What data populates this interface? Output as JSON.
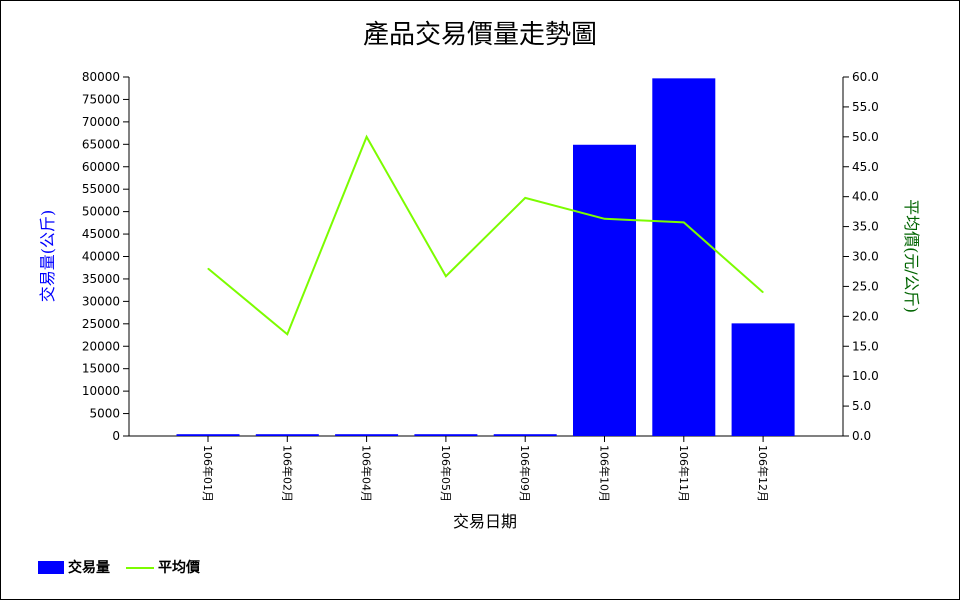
{
  "chart_data": {
    "type": "bar",
    "title": "產品交易價量走勢圖",
    "xlabel": "交易日期",
    "categories": [
      "106年01月",
      "106年02月",
      "106年04月",
      "106年05月",
      "106年09月",
      "106年10月",
      "106年11月",
      "106年12月"
    ],
    "series": [
      {
        "name": "交易量",
        "type": "bar",
        "axis": "left",
        "color": "#0000ff",
        "values": [
          400,
          400,
          400,
          400,
          400,
          64900,
          79700,
          25100
        ]
      },
      {
        "name": "平均價",
        "type": "line",
        "axis": "right",
        "color": "#7cfc00",
        "values": [
          28.0,
          17.0,
          50.0,
          26.7,
          39.8,
          36.3,
          35.7,
          24.0
        ]
      }
    ],
    "y_left": {
      "label": "交易量(公斤)",
      "color": "#0000ff",
      "ylim": [
        0,
        80000
      ],
      "step": 5000
    },
    "y_right": {
      "label": "平均價(元/公斤)",
      "color": "#006400",
      "ylim": [
        0,
        60
      ],
      "step": 5
    },
    "grid": false,
    "legend_position": "bottom-left"
  }
}
